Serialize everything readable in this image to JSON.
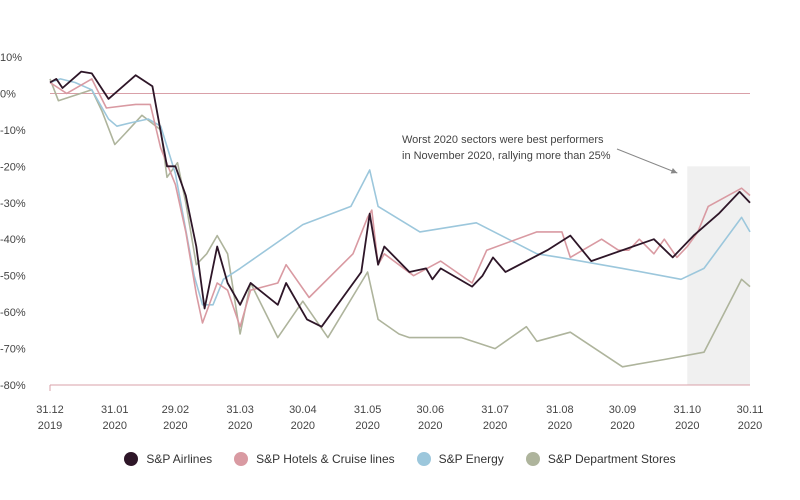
{
  "chart_data": {
    "type": "line",
    "title": "",
    "xlabel": "",
    "ylabel": "",
    "ylim": [
      -80,
      10
    ],
    "y_ticks": [
      {
        "value": 10,
        "label": "10%"
      },
      {
        "value": 0,
        "label": "0%"
      },
      {
        "value": -10,
        "label": "-10%"
      },
      {
        "value": -20,
        "label": "-20%"
      },
      {
        "value": -30,
        "label": "-30%"
      },
      {
        "value": -40,
        "label": "-40%"
      },
      {
        "value": -50,
        "label": "-50%"
      },
      {
        "value": -60,
        "label": "-60%"
      },
      {
        "value": -70,
        "label": "-70%"
      },
      {
        "value": -80,
        "label": "-80%"
      }
    ],
    "x_range": [
      "2019-12-31",
      "2020-11-30"
    ],
    "x_ticks": [
      {
        "date": "2019-12-31",
        "line1": "31.12",
        "line2": "2019"
      },
      {
        "date": "2020-01-31",
        "line1": "31.01",
        "line2": "2020"
      },
      {
        "date": "2020-02-29",
        "line1": "29.02",
        "line2": "2020"
      },
      {
        "date": "2020-03-31",
        "line1": "31.03",
        "line2": "2020"
      },
      {
        "date": "2020-04-30",
        "line1": "30.04",
        "line2": "2020"
      },
      {
        "date": "2020-05-31",
        "line1": "31.05",
        "line2": "2020"
      },
      {
        "date": "2020-06-30",
        "line1": "30.06",
        "line2": "2020"
      },
      {
        "date": "2020-07-31",
        "line1": "31.07",
        "line2": "2020"
      },
      {
        "date": "2020-08-31",
        "line1": "31.08",
        "line2": "2020"
      },
      {
        "date": "2020-09-30",
        "line1": "30.09",
        "line2": "2020"
      },
      {
        "date": "2020-10-31",
        "line1": "31.10",
        "line2": "2020"
      },
      {
        "date": "2020-11-30",
        "line1": "30.11",
        "line2": "2020"
      }
    ],
    "grid": "horizontal at -80% only",
    "reference_lines": [
      0
    ],
    "highlight_region": {
      "from": "2020-10-31",
      "to": "2020-11-30",
      "color": "#f0f0f0"
    },
    "annotation": {
      "lines": [
        "Worst 2020 sectors were best performers",
        "in November 2020, rallying more than 25%"
      ],
      "arrow_target": {
        "date": "2020-10-31",
        "value": -21
      }
    },
    "legend_position": "bottom-center",
    "series": [
      {
        "name": "S&P Airlines",
        "color": "#2e1628",
        "points": [
          [
            "2019-12-31",
            3
          ],
          [
            "2020-01-03",
            4
          ],
          [
            "2020-01-06",
            1.5
          ],
          [
            "2020-01-10",
            3.5
          ],
          [
            "2020-01-15",
            6
          ],
          [
            "2020-01-20",
            5.5
          ],
          [
            "2020-01-28",
            -1.5
          ],
          [
            "2020-02-10",
            5
          ],
          [
            "2020-02-18",
            2
          ],
          [
            "2020-02-25",
            -20
          ],
          [
            "2020-02-29",
            -20
          ],
          [
            "2020-03-05",
            -28
          ],
          [
            "2020-03-10",
            -42
          ],
          [
            "2020-03-14",
            -59
          ],
          [
            "2020-03-20",
            -42
          ],
          [
            "2020-03-25",
            -52
          ],
          [
            "2020-03-31",
            -58
          ],
          [
            "2020-04-05",
            -52
          ],
          [
            "2020-04-18",
            -58
          ],
          [
            "2020-04-22",
            -52
          ],
          [
            "2020-05-02",
            -62
          ],
          [
            "2020-05-09",
            -64
          ],
          [
            "2020-05-28",
            -49
          ],
          [
            "2020-06-01",
            -33
          ],
          [
            "2020-06-05",
            -47
          ],
          [
            "2020-06-08",
            -42
          ],
          [
            "2020-06-20",
            -49
          ],
          [
            "2020-06-28",
            -48
          ],
          [
            "2020-07-01",
            -51
          ],
          [
            "2020-07-05",
            -48
          ],
          [
            "2020-07-20",
            -53
          ],
          [
            "2020-07-25",
            -50
          ],
          [
            "2020-07-30",
            -45
          ],
          [
            "2020-08-05",
            -49
          ],
          [
            "2020-08-25",
            -43
          ],
          [
            "2020-09-05",
            -39
          ],
          [
            "2020-09-15",
            -46
          ],
          [
            "2020-10-15",
            -40
          ],
          [
            "2020-10-24",
            -45
          ],
          [
            "2020-11-03",
            -39
          ],
          [
            "2020-11-15",
            -33
          ],
          [
            "2020-11-25",
            -27
          ],
          [
            "2020-11-30",
            -30
          ]
        ]
      },
      {
        "name": "S&P Hotels & Cruise lines",
        "color": "#d99aa2",
        "points": [
          [
            "2019-12-31",
            3
          ],
          [
            "2020-01-08",
            0
          ],
          [
            "2020-01-20",
            4
          ],
          [
            "2020-01-27",
            -4
          ],
          [
            "2020-02-10",
            -3
          ],
          [
            "2020-02-17",
            -3
          ],
          [
            "2020-02-22",
            -15
          ],
          [
            "2020-02-29",
            -25
          ],
          [
            "2020-03-05",
            -38
          ],
          [
            "2020-03-10",
            -55
          ],
          [
            "2020-03-13",
            -63
          ],
          [
            "2020-03-20",
            -52
          ],
          [
            "2020-03-25",
            -54
          ],
          [
            "2020-03-31",
            -64
          ],
          [
            "2020-04-05",
            -54
          ],
          [
            "2020-04-18",
            -52
          ],
          [
            "2020-04-22",
            -47
          ],
          [
            "2020-05-03",
            -56
          ],
          [
            "2020-05-24",
            -44
          ],
          [
            "2020-05-31",
            -34
          ],
          [
            "2020-06-02",
            -32
          ],
          [
            "2020-06-05",
            -47
          ],
          [
            "2020-06-08",
            -44
          ],
          [
            "2020-06-22",
            -50
          ],
          [
            "2020-07-05",
            -46
          ],
          [
            "2020-07-20",
            -52
          ],
          [
            "2020-07-27",
            -43
          ],
          [
            "2020-08-20",
            -38
          ],
          [
            "2020-09-01",
            -38
          ],
          [
            "2020-09-05",
            -45
          ],
          [
            "2020-09-20",
            -40
          ],
          [
            "2020-09-28",
            -43
          ],
          [
            "2020-10-03",
            -43
          ],
          [
            "2020-10-08",
            -40
          ],
          [
            "2020-10-15",
            -44
          ],
          [
            "2020-10-20",
            -40
          ],
          [
            "2020-10-26",
            -45
          ],
          [
            "2020-10-31",
            -42
          ],
          [
            "2020-11-05",
            -38
          ],
          [
            "2020-11-10",
            -31
          ],
          [
            "2020-11-26",
            -26
          ],
          [
            "2020-11-30",
            -28
          ]
        ]
      },
      {
        "name": "S&P Energy",
        "color": "#9cc7dc",
        "points": [
          [
            "2019-12-31",
            3
          ],
          [
            "2020-01-05",
            4
          ],
          [
            "2020-01-12",
            3
          ],
          [
            "2020-01-20",
            1
          ],
          [
            "2020-01-28",
            -7
          ],
          [
            "2020-02-01",
            -9
          ],
          [
            "2020-02-08",
            -8
          ],
          [
            "2020-02-16",
            -7
          ],
          [
            "2020-02-22",
            -9
          ],
          [
            "2020-02-29",
            -22
          ],
          [
            "2020-03-09",
            -50
          ],
          [
            "2020-03-13",
            -58
          ],
          [
            "2020-03-18",
            -58
          ],
          [
            "2020-03-23",
            -51
          ],
          [
            "2020-03-31",
            -48
          ],
          [
            "2020-04-30",
            -36
          ],
          [
            "2020-05-23",
            -31
          ],
          [
            "2020-06-01",
            -21
          ],
          [
            "2020-06-05",
            -31
          ],
          [
            "2020-06-25",
            -38
          ],
          [
            "2020-07-22",
            -35.5
          ],
          [
            "2020-08-20",
            -44
          ],
          [
            "2020-08-31",
            -45
          ],
          [
            "2020-09-30",
            -48
          ],
          [
            "2020-10-28",
            -51
          ],
          [
            "2020-11-08",
            -48
          ],
          [
            "2020-11-26",
            -34
          ],
          [
            "2020-11-30",
            -38
          ]
        ]
      },
      {
        "name": "S&P Department Stores",
        "color": "#aeb49c",
        "points": [
          [
            "2019-12-31",
            4
          ],
          [
            "2020-01-04",
            -2
          ],
          [
            "2020-01-20",
            1
          ],
          [
            "2020-01-25",
            -5
          ],
          [
            "2020-01-31",
            -14
          ],
          [
            "2020-02-05",
            -11
          ],
          [
            "2020-02-13",
            -6
          ],
          [
            "2020-02-22",
            -10
          ],
          [
            "2020-02-25",
            -23
          ],
          [
            "2020-03-01",
            -19
          ],
          [
            "2020-03-05",
            -30
          ],
          [
            "2020-03-10",
            -47
          ],
          [
            "2020-03-15",
            -44
          ],
          [
            "2020-03-20",
            -39
          ],
          [
            "2020-03-25",
            -44
          ],
          [
            "2020-03-31",
            -66
          ],
          [
            "2020-04-05",
            -52
          ],
          [
            "2020-04-18",
            -67
          ],
          [
            "2020-04-30",
            -57
          ],
          [
            "2020-05-12",
            -67
          ],
          [
            "2020-05-31",
            -49
          ],
          [
            "2020-06-05",
            -62
          ],
          [
            "2020-06-15",
            -66
          ],
          [
            "2020-06-20",
            -67
          ],
          [
            "2020-07-15",
            -67
          ],
          [
            "2020-07-31",
            -70
          ],
          [
            "2020-08-15",
            -64
          ],
          [
            "2020-08-20",
            -68
          ],
          [
            "2020-09-05",
            -65.5
          ],
          [
            "2020-09-30",
            -75
          ],
          [
            "2020-10-20",
            -73
          ],
          [
            "2020-11-08",
            -71
          ],
          [
            "2020-11-26",
            -51
          ],
          [
            "2020-11-30",
            -53
          ]
        ]
      }
    ]
  }
}
